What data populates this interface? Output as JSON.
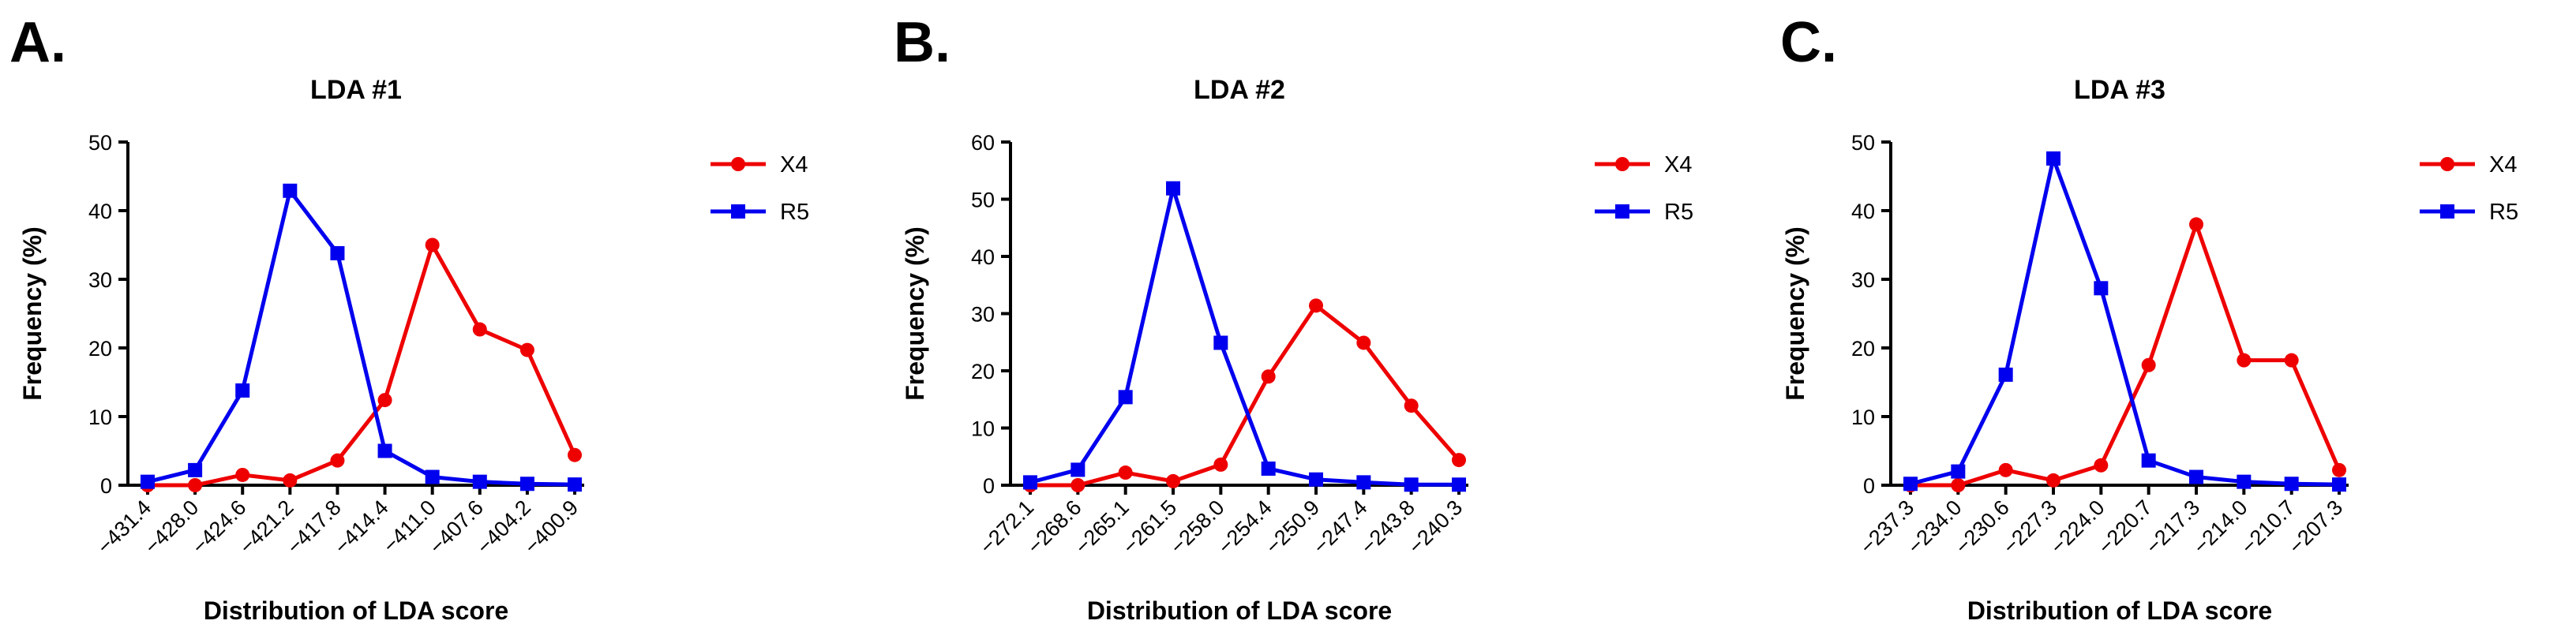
{
  "colors": {
    "X4": "#ee0000",
    "R5": "#0000ee",
    "axis": "#000000"
  },
  "chart_data": [
    {
      "panel_label": "A.",
      "type": "line",
      "title": "LDA #1",
      "xlabel": "Distribution of LDA score",
      "ylabel": "Frequency (%)",
      "ylim": [
        0,
        50
      ],
      "yticks": [
        "0",
        "10",
        "20",
        "30",
        "40",
        "50"
      ],
      "categories": [
        "−431.4",
        "−428.0",
        "−424.6",
        "−421.2",
        "−417.8",
        "−414.4",
        "−411.0",
        "−407.6",
        "−404.2",
        "−400.9"
      ],
      "legend_position": "right",
      "series": [
        {
          "name": "X4",
          "marker": "circle",
          "values": [
            0.0,
            0.0,
            1.5,
            0.7,
            3.6,
            12.4,
            35.0,
            22.7,
            19.7,
            4.4
          ]
        },
        {
          "name": "R5",
          "marker": "square",
          "values": [
            0.5,
            2.2,
            13.8,
            42.9,
            33.8,
            5.0,
            1.2,
            0.5,
            0.2,
            0.1
          ]
        }
      ]
    },
    {
      "panel_label": "B.",
      "type": "line",
      "title": "LDA #2",
      "xlabel": "Distribution of LDA score",
      "ylabel": "Frequency (%)",
      "ylim": [
        0,
        60
      ],
      "yticks": [
        "0",
        "10",
        "20",
        "30",
        "40",
        "50",
        "60"
      ],
      "categories": [
        "−272.1",
        "−268.6",
        "−265.1",
        "−261.5",
        "−258.0",
        "−254.4",
        "−250.9",
        "−247.4",
        "−243.8",
        "−240.3"
      ],
      "legend_position": "right",
      "series": [
        {
          "name": "X4",
          "marker": "circle",
          "values": [
            0.0,
            0.0,
            2.2,
            0.7,
            3.6,
            19.0,
            31.4,
            24.9,
            13.9,
            4.4
          ]
        },
        {
          "name": "R5",
          "marker": "square",
          "values": [
            0.5,
            2.7,
            15.4,
            51.9,
            24.9,
            2.9,
            1.0,
            0.5,
            0.1,
            0.1
          ]
        }
      ]
    },
    {
      "panel_label": "C.",
      "type": "line",
      "title": "LDA #3",
      "xlabel": "Distribution of LDA score",
      "ylabel": "Frequency (%)",
      "ylim": [
        0,
        50
      ],
      "yticks": [
        "0",
        "10",
        "20",
        "30",
        "40",
        "50"
      ],
      "categories": [
        "−237.3",
        "−234.0",
        "−230.6",
        "−227.3",
        "−224.0",
        "−220.7",
        "−217.3",
        "−214.0",
        "−210.7",
        "−207.3"
      ],
      "legend_position": "right",
      "series": [
        {
          "name": "X4",
          "marker": "circle",
          "values": [
            0.0,
            0.0,
            2.2,
            0.7,
            2.9,
            17.5,
            38.0,
            18.2,
            18.2,
            2.2
          ]
        },
        {
          "name": "R5",
          "marker": "square",
          "values": [
            0.2,
            2.0,
            16.1,
            47.6,
            28.7,
            3.6,
            1.2,
            0.5,
            0.2,
            0.1
          ]
        }
      ]
    }
  ]
}
